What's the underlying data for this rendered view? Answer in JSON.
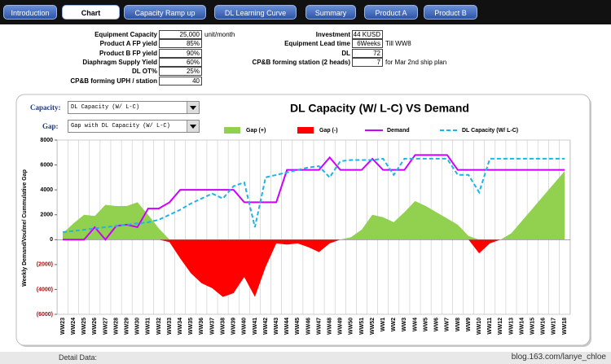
{
  "nav": {
    "tabs": [
      "Introduction",
      "Chart",
      "Capacity Ramp up",
      "DL Learning Curve",
      "Summary",
      "Product A",
      "Product B"
    ],
    "active": 1
  },
  "params": {
    "left": [
      {
        "label": "Equipment Capacity",
        "value": "25,000",
        "unit": "unit/month"
      },
      {
        "label": "Product A FP yield",
        "value": "85%"
      },
      {
        "label": "Product B FP yield",
        "value": "90%"
      },
      {
        "label": "Diaphragm Supply Yield",
        "value": "60%"
      },
      {
        "label": "DL OT%",
        "value": "25%"
      },
      {
        "label": "CP&B forming UPH / station",
        "value": "40"
      }
    ],
    "right": [
      {
        "label": "Investment",
        "value": "44 KUSD"
      },
      {
        "label": "Equipment Lead time",
        "value": "6Weeks",
        "unit": "Till WW8"
      },
      {
        "label": "DL",
        "value": "72"
      },
      {
        "label": "CP&B forming station (2 heads)",
        "value": "7",
        "unit": "for Mar 2nd ship plan"
      }
    ]
  },
  "controls": [
    {
      "label": "Capacity:",
      "value": "DL Capacity (W/ L-C)"
    },
    {
      "label": "Gap:",
      "value": "Gap with DL Capacity (W/ L-C)"
    }
  ],
  "chart_data": {
    "type": "combo",
    "title": "DL Capacity (W/ L-C) VS Demand",
    "y_label": "Weekly Demand/Voulme/ Cummulative Gap",
    "categories": [
      "WW23",
      "WW24",
      "WW25",
      "WW26",
      "WW27",
      "WW28",
      "WW29",
      "WW30",
      "WW31",
      "WW32",
      "WW33",
      "WW34",
      "WW35",
      "WW36",
      "WW37",
      "WW38",
      "WW39",
      "WW40",
      "WW41",
      "WW42",
      "WW43",
      "WW44",
      "WW45",
      "WW46",
      "WW47",
      "WW48",
      "WW49",
      "WW50",
      "WW51",
      "WW52",
      "WW1",
      "WW2",
      "WW3",
      "WW4",
      "WW5",
      "WW6",
      "WW7",
      "WW8",
      "WW9",
      "WW10",
      "WW11",
      "WW12",
      "WW13",
      "WW14",
      "WW15",
      "WW16",
      "WW17",
      "WW18"
    ],
    "ylim": [
      -6000,
      8000
    ],
    "yticks": [
      {
        "value": -6000,
        "label": "(6000)"
      },
      {
        "value": -4000,
        "label": "(4000)"
      },
      {
        "value": -2000,
        "label": "(2000)"
      },
      0,
      2000,
      4000,
      6000,
      8000
    ],
    "grid": "x",
    "series": [
      {
        "name": "Gap (+)",
        "type": "area",
        "color": "#92d050",
        "values": [
          500,
          1300,
          2000,
          1900,
          2800,
          2700,
          2700,
          3000,
          2000,
          900,
          0,
          0,
          0,
          0,
          0,
          0,
          0,
          0,
          0,
          0,
          0,
          0,
          0,
          0,
          0,
          0,
          0,
          200,
          800,
          2000,
          1800,
          1400,
          2200,
          3100,
          2700,
          2200,
          1700,
          1200,
          300,
          0,
          0,
          0,
          500,
          1500,
          2500,
          3500,
          4500,
          5500
        ]
      },
      {
        "name": "Gap (-)",
        "type": "area",
        "color": "#ff0000",
        "values": [
          0,
          0,
          0,
          0,
          0,
          0,
          0,
          0,
          0,
          0,
          -200,
          -1500,
          -2700,
          -3500,
          -3900,
          -4600,
          -4300,
          -3000,
          -4600,
          -2200,
          -300,
          -400,
          -300,
          -600,
          -1000,
          -300,
          0,
          0,
          0,
          0,
          0,
          0,
          0,
          0,
          0,
          0,
          0,
          0,
          0,
          -1100,
          -300,
          0,
          0,
          0,
          0,
          0,
          0,
          0
        ]
      },
      {
        "name": "Demand",
        "type": "line",
        "color": "#cc00ff",
        "style": "solid",
        "values": [
          0,
          0,
          0,
          1000,
          0,
          1100,
          1200,
          1000,
          2500,
          2500,
          3000,
          4000,
          4000,
          4000,
          4000,
          4000,
          4000,
          3000,
          3000,
          3000,
          3000,
          5600,
          5600,
          5600,
          5600,
          6600,
          5600,
          5600,
          5600,
          6500,
          5600,
          5600,
          5600,
          6800,
          6800,
          6800,
          6800,
          5600,
          5600,
          5600,
          5600,
          5600,
          5600,
          5600,
          5600,
          5600,
          5600,
          5600
        ]
      },
      {
        "name": "DL Capacity (W/ L-C)",
        "type": "line",
        "color": "#1fb4e8",
        "style": "dashed",
        "values": [
          600,
          700,
          800,
          900,
          1000,
          1100,
          1200,
          1300,
          1400,
          1600,
          2000,
          2400,
          2900,
          3300,
          3700,
          3300,
          4300,
          4600,
          1000,
          5000,
          5200,
          5400,
          5600,
          5800,
          5900,
          5000,
          6300,
          6400,
          6400,
          6400,
          6500,
          5200,
          6500,
          6500,
          6500,
          6500,
          6500,
          5200,
          5200,
          3800,
          6500,
          6500,
          6500,
          6500,
          6500,
          6500,
          6500,
          6500
        ]
      }
    ]
  },
  "footer": {
    "label": "Detail Data:",
    "watermark": "blog.163.com/lanye_chloe"
  }
}
